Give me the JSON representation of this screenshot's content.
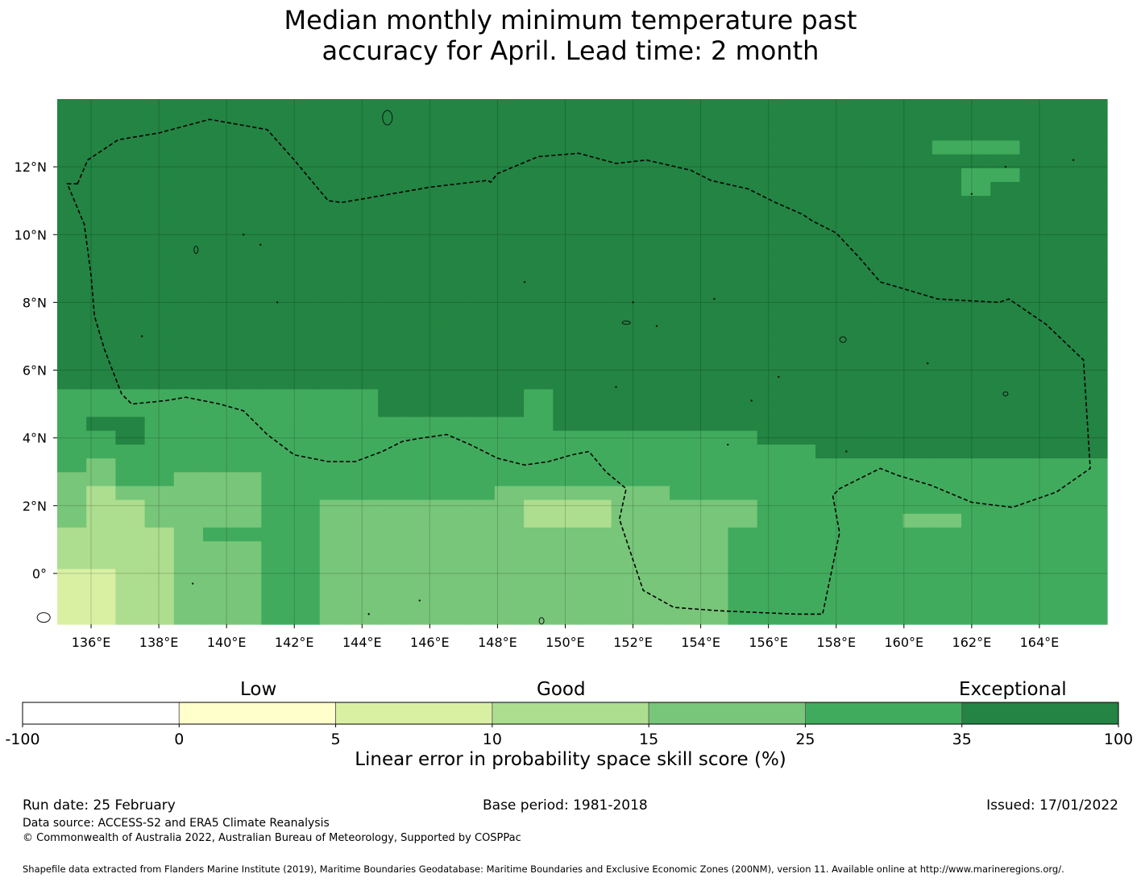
{
  "title_line1": "Median monthly minimum temperature past",
  "title_line2": "accuracy for April. Lead time: 2 month",
  "chart_data": {
    "type": "heatmap",
    "x_ticks": [
      {
        "lon": 136,
        "label": "136°E"
      },
      {
        "lon": 138,
        "label": "138°E"
      },
      {
        "lon": 140,
        "label": "140°E"
      },
      {
        "lon": 142,
        "label": "142°E"
      },
      {
        "lon": 144,
        "label": "144°E"
      },
      {
        "lon": 146,
        "label": "146°E"
      },
      {
        "lon": 148,
        "label": "148°E"
      },
      {
        "lon": 150,
        "label": "150°E"
      },
      {
        "lon": 152,
        "label": "152°E"
      },
      {
        "lon": 154,
        "label": "154°E"
      },
      {
        "lon": 156,
        "label": "156°E"
      },
      {
        "lon": 158,
        "label": "158°E"
      },
      {
        "lon": 160,
        "label": "160°E"
      },
      {
        "lon": 162,
        "label": "162°E"
      },
      {
        "lon": 164,
        "label": "164°E"
      }
    ],
    "y_ticks": [
      {
        "lat": 12,
        "label": "12°N"
      },
      {
        "lat": 10,
        "label": "10°N"
      },
      {
        "lat": 8,
        "label": "8°N"
      },
      {
        "lat": 6,
        "label": "6°N"
      },
      {
        "lat": 4,
        "label": "4°N"
      },
      {
        "lat": 2,
        "label": "2°N"
      },
      {
        "lat": 0,
        "label": "0°"
      }
    ],
    "lon_range": [
      135,
      166
    ],
    "lat_range": [
      -1.5,
      14
    ],
    "palette": [
      "#ffffff",
      "#ffffcc",
      "#d9f0a3",
      "#addd8e",
      "#78c679",
      "#41ab5d",
      "#238443"
    ],
    "grid_rows": [
      "666666666666666666666666666666666666",
      "666666666666666666666666666666666666",
      "666666666666666666666666666666666666",
      "666666666666666666666666666666555666",
      "666666666666666666666666666666666666",
      "666666666666666666666666666666655666",
      "666666666666666666666666666666656666",
      "666666666666666666666666666666666666",
      "666666666666666666666666666666666666",
      "666666666666666666666666666666666666",
      "666666666666666666666666666666666666",
      "666666666666666666666666666666666666",
      "666666666666666666666666666666666666",
      "666666666666666666666666666666666666",
      "666666666666666666666666666666666666",
      "666666666666666666666666666666666666",
      "666666666666666666666666666666666666",
      "666666666666666666666666666666666666",
      "666666666666666666666666666666666666",
      "666666666666666666666666666666666666",
      "666666666666666666666666666666666666",
      "555555555556666656666666666666666666",
      "555555555556666656666666666666666666",
      "566555555555555556666666666666666666",
      "556555555555555555555555666666666666",
      "555555555555555555555555556666666666",
      "545555555555555555555555555555555555",
      "445544455555555555555555555555555555",
      "434444455555555444444555555555555555",
      "433444455444444433344444555555555555",
      "433444455444444433344444555554455555",
      "333345555444444444444445555555555555",
      "333344455444444444444445555555555555",
      "333344455444444444444445555555555555",
      "223344455444444444444445555555555555",
      "223344455444444444444445555555555555",
      "223344455444444444444445555555555555",
      "223344455444444444444445555555555555"
    ],
    "colorbar": {
      "boundaries": [
        "-100",
        "0",
        "5",
        "10",
        "15",
        "25",
        "35",
        "100"
      ],
      "colors": [
        "#ffffff",
        "#ffffcc",
        "#d9f0a3",
        "#addd8e",
        "#78c679",
        "#41ab5d",
        "#238443"
      ],
      "category_labels": [
        "Low",
        "Good",
        "Exceptional"
      ],
      "label": "Linear error in probability space skill score (%)"
    }
  },
  "footer": {
    "run_date": "Run date: 25 February",
    "base_period": "Base period: 1981-2018",
    "issued": "Issued: 17/01/2022",
    "data_source": "Data source: ACCESS-S2 and ERA5 Climate Reanalysis",
    "copyright": "© Commonwealth of Australia 2022, Australian Bureau of Meteorology, Supported by COSPPac",
    "shapefile": "Shapefile data extracted from Flanders Marine Institute (2019), Maritime Boundaries Geodatabase: Maritime Boundaries and Exclusive Economic Zones (200NM), version 11. Available online at http://www.marineregions.org/."
  }
}
